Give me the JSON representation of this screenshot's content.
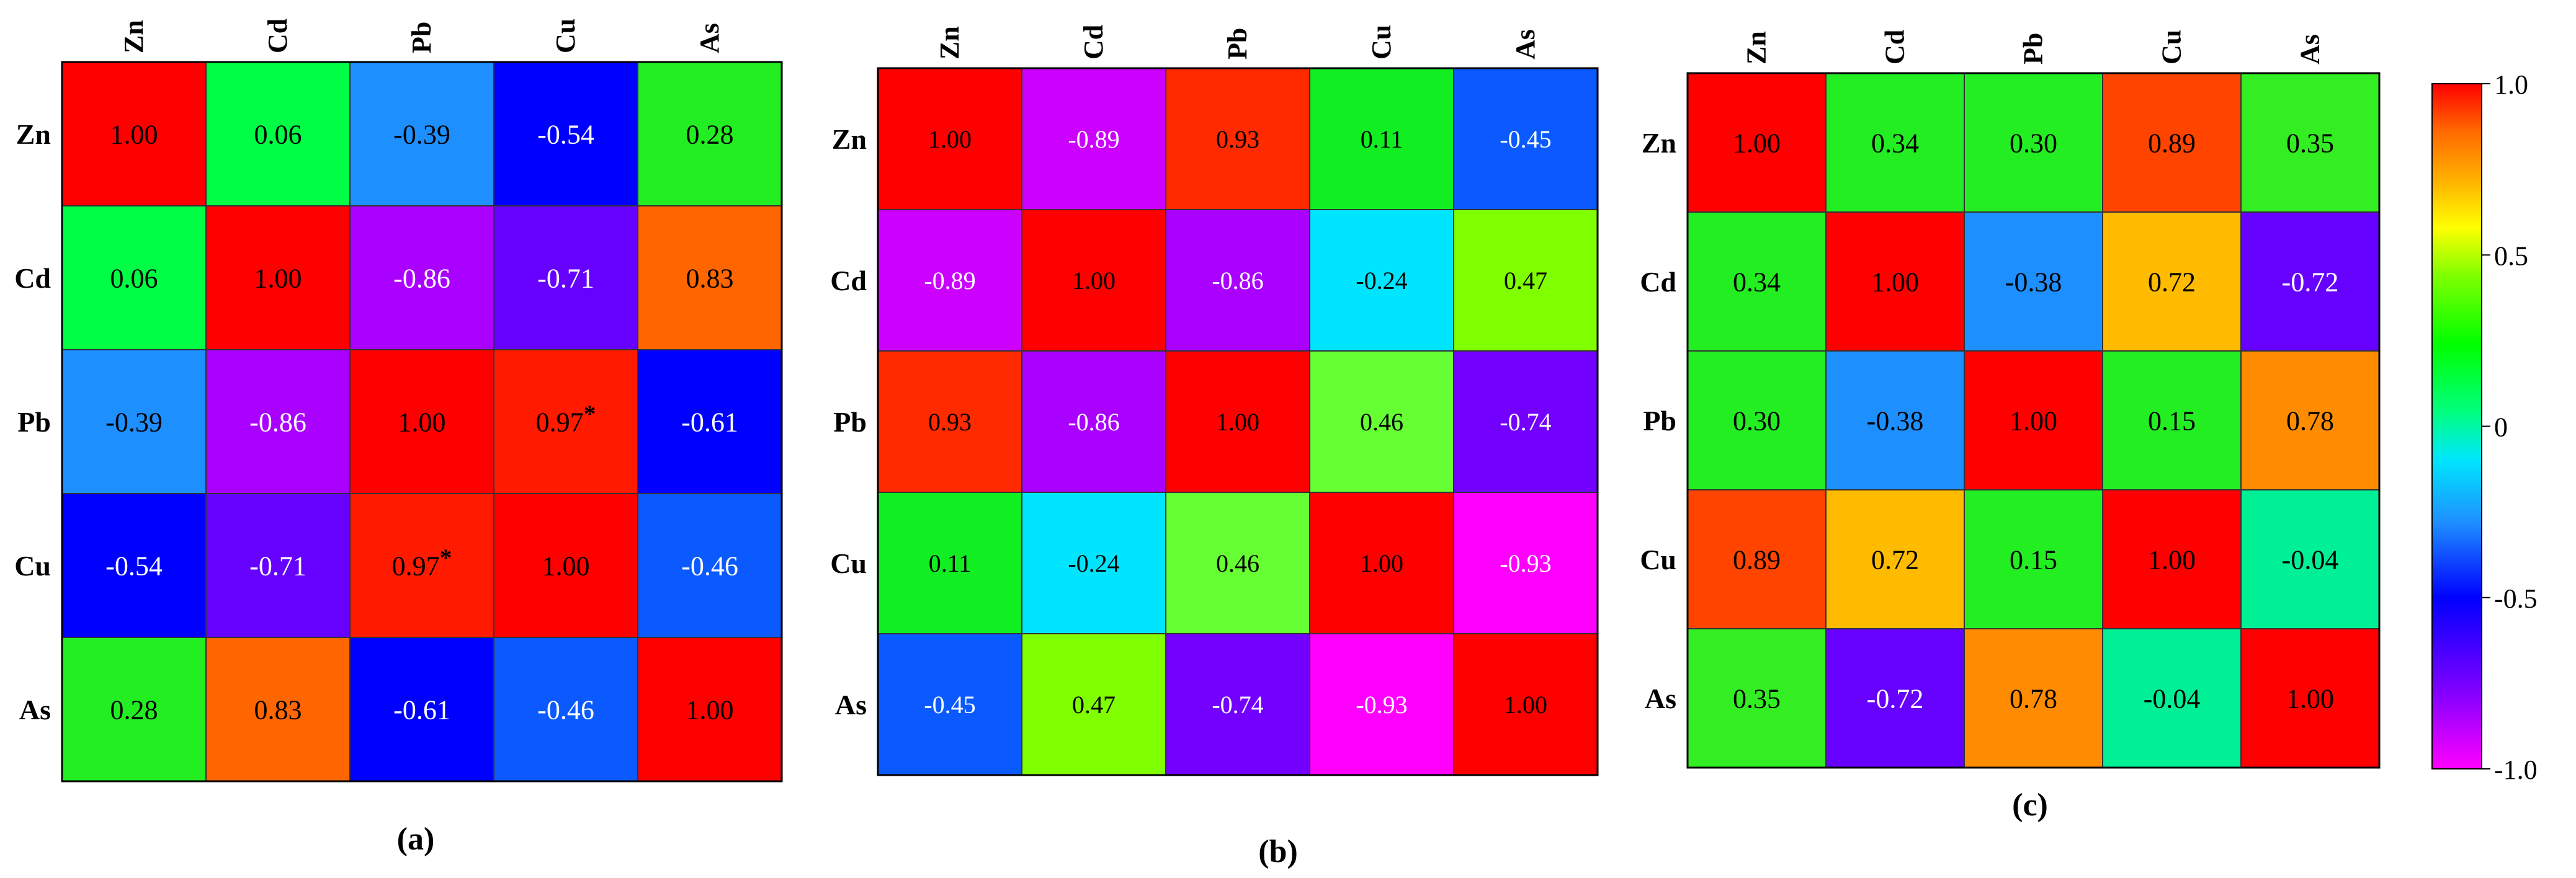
{
  "chart_data": [
    {
      "type": "heatmap",
      "panel_label": "(a)",
      "rows": [
        "Zn",
        "Cd",
        "Pb",
        "Cu",
        "As"
      ],
      "cols": [
        "Zn",
        "Cd",
        "Pb",
        "Cu",
        "As"
      ],
      "values": [
        [
          1.0,
          0.06,
          -0.39,
          -0.54,
          0.28
        ],
        [
          0.06,
          1.0,
          -0.86,
          -0.71,
          0.83
        ],
        [
          -0.39,
          -0.86,
          1.0,
          0.97,
          -0.61
        ],
        [
          -0.54,
          -0.71,
          0.97,
          1.0,
          -0.46
        ],
        [
          0.28,
          0.83,
          -0.61,
          -0.46,
          1.0
        ]
      ],
      "labels": [
        [
          "1.00",
          "0.06",
          "-0.39",
          "-0.54",
          "0.28"
        ],
        [
          "0.06",
          "1.00",
          "-0.86",
          "-0.71",
          "0.83"
        ],
        [
          "-0.39",
          "-0.86",
          "1.00",
          "0.97*",
          "-0.61"
        ],
        [
          "-0.54",
          "-0.71",
          "0.97*",
          "1.00",
          "-0.46"
        ],
        [
          "0.28",
          "0.83",
          "-0.61",
          "-0.46",
          "1.00"
        ]
      ]
    },
    {
      "type": "heatmap",
      "panel_label": "(b)",
      "rows": [
        "Zn",
        "Cd",
        "Pb",
        "Cu",
        "As"
      ],
      "cols": [
        "Zn",
        "Cd",
        "Pb",
        "Cu",
        "As"
      ],
      "values": [
        [
          1.0,
          -0.89,
          0.93,
          0.11,
          -0.45
        ],
        [
          -0.89,
          1.0,
          -0.86,
          -0.24,
          0.47
        ],
        [
          0.93,
          -0.86,
          1.0,
          0.46,
          -0.74
        ],
        [
          0.11,
          -0.24,
          0.46,
          1.0,
          -0.93
        ],
        [
          -0.45,
          0.47,
          -0.74,
          -0.93,
          1.0
        ]
      ],
      "labels": [
        [
          "1.00",
          "-0.89",
          "0.93",
          "0.11",
          "-0.45"
        ],
        [
          "-0.89",
          "1.00",
          "-0.86",
          "-0.24",
          "0.47"
        ],
        [
          "0.93",
          "-0.86",
          "1.00",
          "0.46",
          "-0.74"
        ],
        [
          "0.11",
          "-0.24",
          "0.46",
          "1.00",
          "-0.93"
        ],
        [
          "-0.45",
          "0.47",
          "-0.74",
          "-0.93",
          "1.00"
        ]
      ]
    },
    {
      "type": "heatmap",
      "panel_label": "(c)",
      "rows": [
        "Zn",
        "Cd",
        "Pb",
        "Cu",
        "As"
      ],
      "cols": [
        "Zn",
        "Cd",
        "Pb",
        "Cu",
        "As"
      ],
      "values": [
        [
          1.0,
          0.34,
          0.3,
          0.89,
          0.35
        ],
        [
          0.34,
          1.0,
          -0.38,
          0.72,
          -0.72
        ],
        [
          0.3,
          -0.38,
          1.0,
          0.15,
          0.78
        ],
        [
          0.89,
          0.72,
          0.15,
          1.0,
          -0.04
        ],
        [
          0.35,
          -0.72,
          0.78,
          -0.04,
          1.0
        ]
      ],
      "labels": [
        [
          "1.00",
          "0.34",
          "0.30",
          "0.89",
          "0.35"
        ],
        [
          "0.34",
          "1.00",
          "-0.38",
          "0.72",
          "-0.72"
        ],
        [
          "0.30",
          "-0.38",
          "1.00",
          "0.15",
          "0.78"
        ],
        [
          "0.89",
          "0.72",
          "0.15",
          "1.00",
          "-0.04"
        ],
        [
          "0.35",
          "-0.72",
          "0.78",
          "-0.04",
          "1.00"
        ]
      ]
    }
  ],
  "colorbar": {
    "ticks": [
      "1.0",
      "0.5",
      "0",
      "-0.5",
      "-1.0"
    ],
    "range": [
      -1.0,
      1.0
    ],
    "colormap": [
      "#ff00ff",
      "#7a00ff",
      "#0000ff",
      "#1e8fff",
      "#00e5ff",
      "#00ff80",
      "#00ff00",
      "#80ff00",
      "#ffff00",
      "#ffb000",
      "#ff6a00",
      "#ff0000"
    ]
  },
  "colors": {
    "cells": {
      "1.00": "#ff0000",
      "0.97": "#ff1a00",
      "0.93": "#ff2a00",
      "0.89": "#ff4400",
      "0.83": "#ff6600",
      "0.78": "#ff8c00",
      "0.72": "#ffbb00",
      "0.47": "#80ff00",
      "0.46": "#66ff33",
      "0.35": "#33ee22",
      "0.34": "#22ee22",
      "0.30": "#22ee22",
      "0.28": "#22ee22",
      "0.15": "#22ee22",
      "0.11": "#11ee22",
      "0.06": "#00ff44",
      "-0.04": "#00f096",
      "-0.24": "#00e5ff",
      "-0.38": "#1e8fff",
      "-0.39": "#1e8fff",
      "-0.45": "#0a5aff",
      "-0.46": "#0a5aff",
      "-0.54": "#0000ff",
      "-0.61": "#0000ff",
      "-0.71": "#6600ff",
      "-0.72": "#6600ff",
      "-0.74": "#7300ff",
      "-0.86": "#aa00ff",
      "-0.89": "#cc00ff",
      "-0.93": "#ff00ff"
    }
  }
}
